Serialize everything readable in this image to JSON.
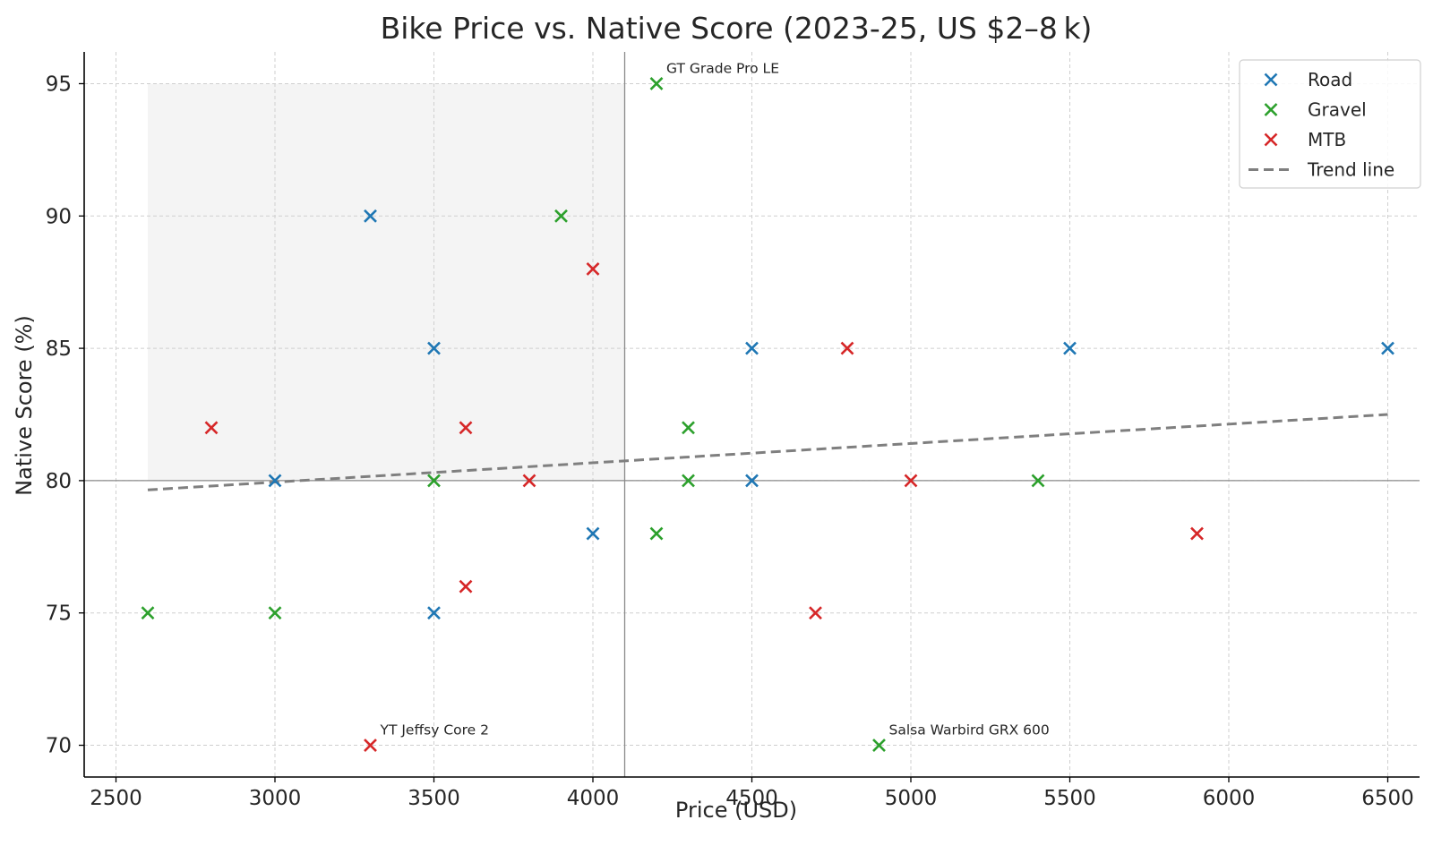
{
  "chart_data": {
    "type": "scatter",
    "title": "Bike Price vs. Native Score (2023-25, US $2–8 k)",
    "xlabel": "Price (USD)",
    "ylabel": "Native Score (%)",
    "xlim": [
      2400,
      6600
    ],
    "ylim": [
      68.8,
      96.2
    ],
    "xticks": [
      2500,
      3000,
      3500,
      4000,
      4500,
      5000,
      5500,
      6000,
      6500
    ],
    "yticks": [
      70,
      75,
      80,
      85,
      90,
      95
    ],
    "grid": true,
    "legend_position": "top-right",
    "colors": {
      "Road": "#1f77b4",
      "Gravel": "#2ca02c",
      "MTB": "#d62728",
      "trend": "#7f7f7f"
    },
    "series": [
      {
        "name": "Road",
        "marker": "x",
        "points": [
          [
            3000,
            80
          ],
          [
            3300,
            90
          ],
          [
            3500,
            85
          ],
          [
            3500,
            75
          ],
          [
            4000,
            78
          ],
          [
            4500,
            85
          ],
          [
            4500,
            80
          ],
          [
            5500,
            85
          ],
          [
            6500,
            85
          ]
        ]
      },
      {
        "name": "Gravel",
        "marker": "x",
        "points": [
          [
            2600,
            75
          ],
          [
            3000,
            75
          ],
          [
            3500,
            80
          ],
          [
            3900,
            90
          ],
          [
            4200,
            95
          ],
          [
            4200,
            78
          ],
          [
            4300,
            82
          ],
          [
            4300,
            80
          ],
          [
            4900,
            70
          ],
          [
            5400,
            80
          ]
        ]
      },
      {
        "name": "MTB",
        "marker": "x",
        "points": [
          [
            2800,
            82
          ],
          [
            3300,
            70
          ],
          [
            3600,
            82
          ],
          [
            3600,
            76
          ],
          [
            3800,
            80
          ],
          [
            4000,
            88
          ],
          [
            4700,
            75
          ],
          [
            4800,
            85
          ],
          [
            5000,
            80
          ],
          [
            5900,
            78
          ]
        ]
      }
    ],
    "trend_line": {
      "name": "Trend line",
      "x": [
        2600,
        6500
      ],
      "y": [
        79.65,
        82.5
      ]
    },
    "reference_lines": {
      "vertical_x": 4100,
      "horizontal_y": 80
    },
    "shaded_region": {
      "x": [
        2600,
        4100
      ],
      "y": [
        80,
        95
      ]
    },
    "annotations": [
      {
        "text": "GT Grade Pro LE",
        "x": 4200,
        "y": 95
      },
      {
        "text": "YT Jeffsy Core 2",
        "x": 3300,
        "y": 70
      },
      {
        "text": "Salsa Warbird GRX 600",
        "x": 4900,
        "y": 70
      }
    ]
  }
}
